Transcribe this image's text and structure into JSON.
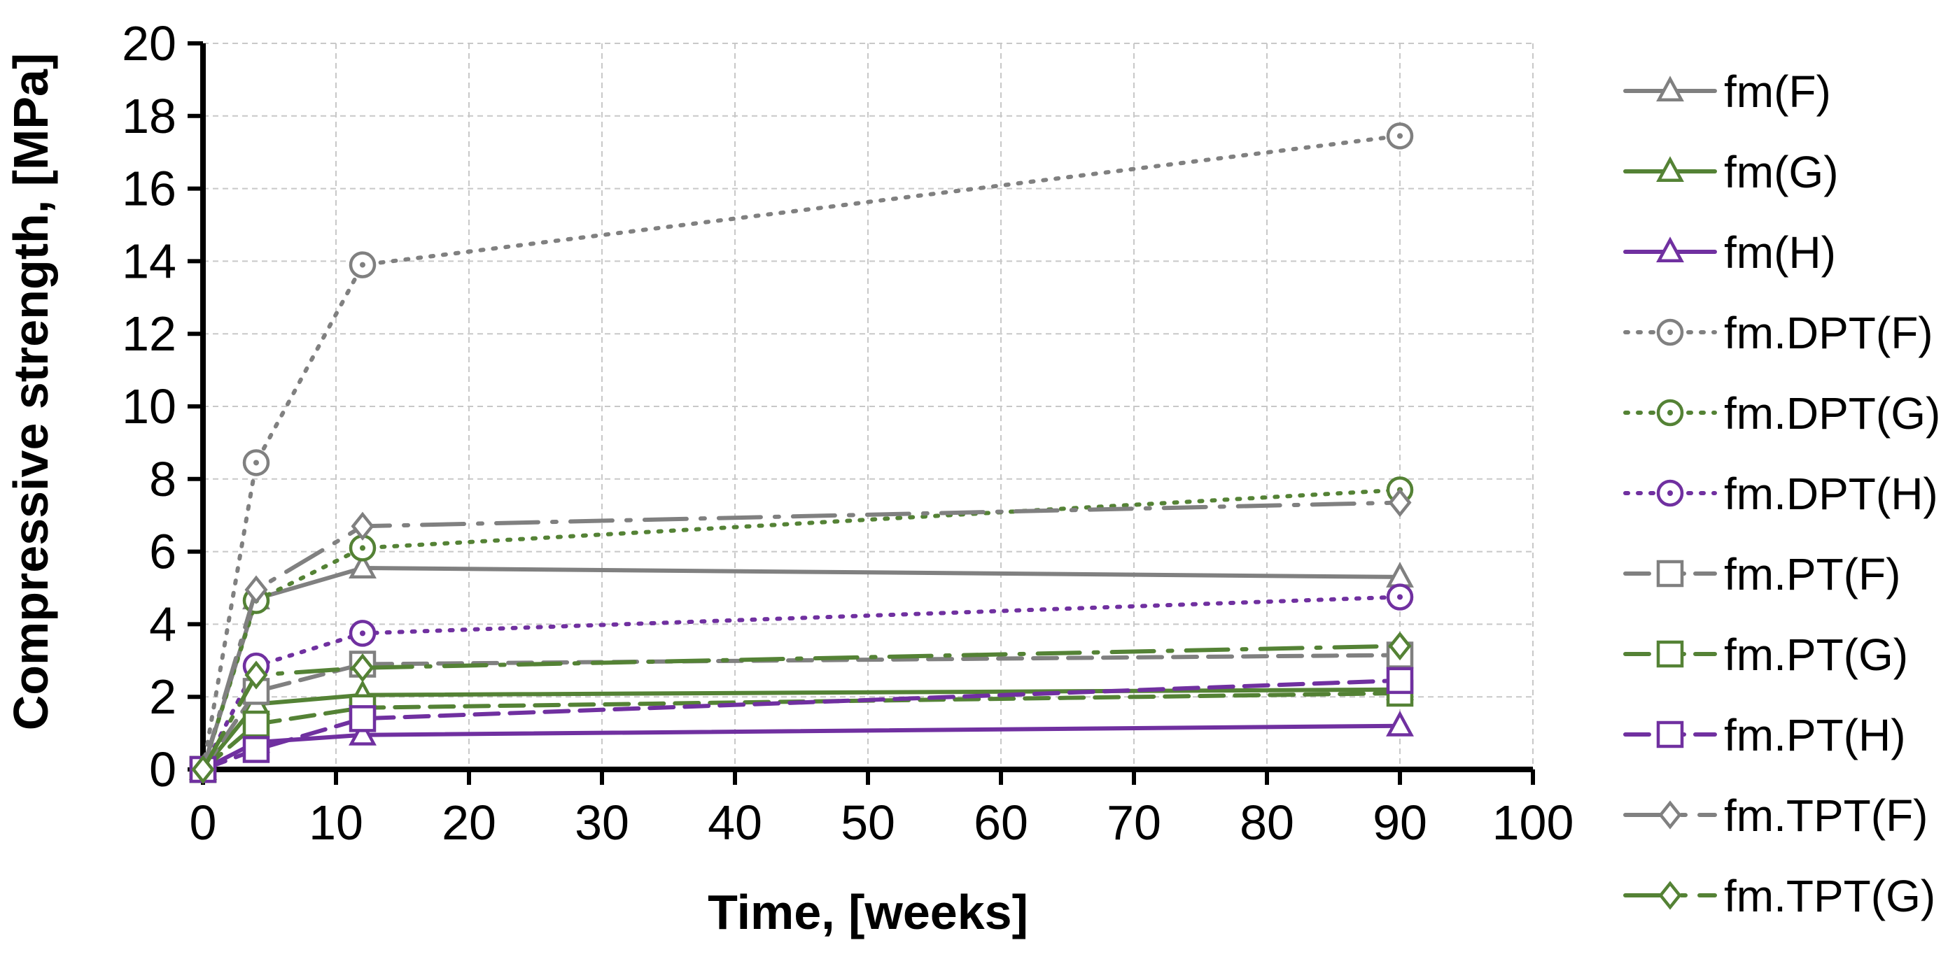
{
  "chart_data": {
    "type": "line",
    "title": "",
    "xlabel": "Time, [weeks]",
    "ylabel": "Compressive strength, [MPa]",
    "xlim": [
      0,
      100
    ],
    "ylim": [
      0,
      20
    ],
    "xticks": [
      0,
      10,
      20,
      30,
      40,
      50,
      60,
      70,
      80,
      90,
      100
    ],
    "yticks": [
      0,
      2,
      4,
      6,
      8,
      10,
      12,
      14,
      16,
      18,
      20
    ],
    "xtick_labels": [
      "0",
      "10",
      "20",
      "30",
      "40",
      "50",
      "60",
      "70",
      "80",
      "90",
      "100"
    ],
    "ytick_labels": [
      "0",
      "2",
      "4",
      "6",
      "8",
      "10",
      "12",
      "14",
      "16",
      "18",
      "20"
    ],
    "grid": true,
    "legend_position": "right",
    "colors": {
      "gray": "#808080",
      "green": "#548235",
      "purple": "#7030A0"
    },
    "x": [
      0,
      4,
      12,
      90
    ],
    "series": [
      {
        "name": "fm(F)",
        "color": "gray",
        "dash": "solid",
        "marker": "triangle",
        "values": [
          0,
          4.7,
          5.55,
          5.3
        ]
      },
      {
        "name": "fm(G)",
        "color": "green",
        "dash": "solid",
        "marker": "triangle",
        "values": [
          0,
          1.8,
          2.05,
          2.2
        ]
      },
      {
        "name": "fm(H)",
        "color": "purple",
        "dash": "solid",
        "marker": "triangle",
        "values": [
          0,
          0.75,
          0.95,
          1.2
        ]
      },
      {
        "name": "fm.DPT(F)",
        "color": "gray",
        "dash": "dot",
        "marker": "circle",
        "values": [
          0,
          8.45,
          13.9,
          17.45
        ]
      },
      {
        "name": "fm.DPT(G)",
        "color": "green",
        "dash": "dot",
        "marker": "circle",
        "values": [
          0,
          4.65,
          6.1,
          7.7
        ]
      },
      {
        "name": "fm.DPT(H)",
        "color": "purple",
        "dash": "dot",
        "marker": "circle",
        "values": [
          0,
          2.85,
          3.75,
          4.75
        ]
      },
      {
        "name": "fm.PT(F)",
        "color": "gray",
        "dash": "dash",
        "marker": "square",
        "values": [
          0,
          2.15,
          2.9,
          3.15
        ]
      },
      {
        "name": "fm.PT(G)",
        "color": "green",
        "dash": "dash",
        "marker": "square",
        "values": [
          0,
          1.25,
          1.7,
          2.1
        ]
      },
      {
        "name": "fm.PT(H)",
        "color": "purple",
        "dash": "dash",
        "marker": "square",
        "values": [
          0,
          0.55,
          1.4,
          2.45
        ]
      },
      {
        "name": "fm.TPT(F)",
        "color": "gray",
        "dash": "dashdot",
        "marker": "diamond",
        "values": [
          0,
          4.95,
          6.7,
          7.35
        ]
      },
      {
        "name": "fm.TPT(G)",
        "color": "green",
        "dash": "dashdot",
        "marker": "diamond",
        "values": [
          0,
          2.6,
          2.8,
          3.4
        ]
      }
    ]
  }
}
